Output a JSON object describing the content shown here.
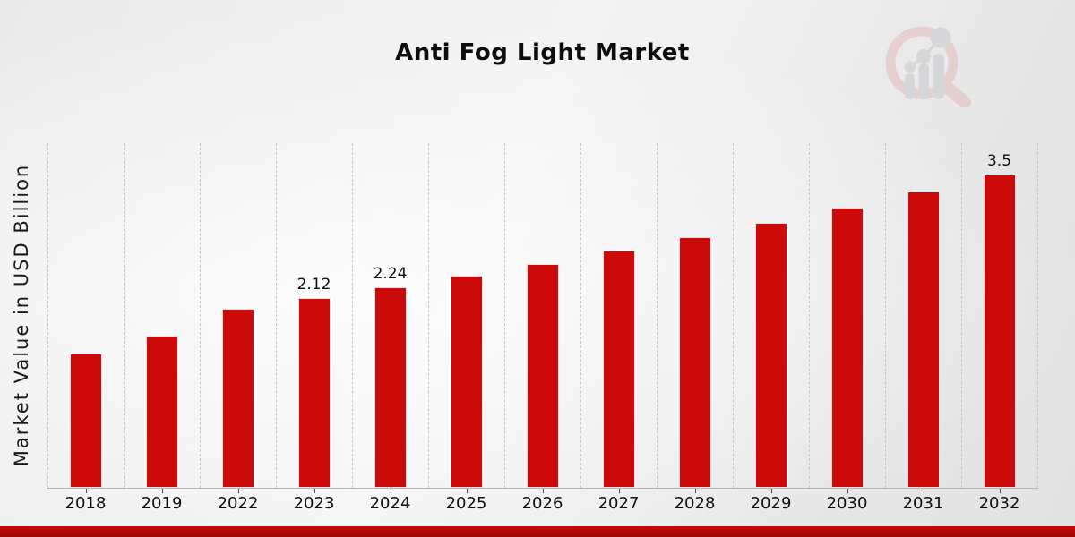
{
  "title": "Anti Fog Light Market",
  "chart_data": {
    "type": "bar",
    "title": "Anti Fog Light Market",
    "xlabel": "",
    "ylabel": "Market Value in USD Billion",
    "units": "USD Billion",
    "categories": [
      "2018",
      "2019",
      "2022",
      "2023",
      "2024",
      "2025",
      "2026",
      "2027",
      "2028",
      "2029",
      "2030",
      "2031",
      "2032"
    ],
    "values": [
      1.5,
      1.7,
      2.0,
      2.12,
      2.24,
      2.37,
      2.5,
      2.65,
      2.8,
      2.96,
      3.13,
      3.31,
      3.5
    ],
    "bar_labels": [
      "",
      "",
      "",
      "2.12",
      "2.24",
      "",
      "",
      "",
      "",
      "",
      "",
      "",
      "3.5"
    ],
    "ylim": [
      0,
      3.85
    ],
    "bar_color": "#cc0a0a",
    "grid": "vertical-dashed",
    "legend": "none"
  },
  "brand": {
    "logo_name": "market-research-future-watermark",
    "ring_color": "#e2bbbb",
    "glyph_color": "#c6c8cc"
  },
  "footer": {
    "stripe_color_top": "#c40a0a",
    "stripe_color_bottom": "#a10505"
  }
}
